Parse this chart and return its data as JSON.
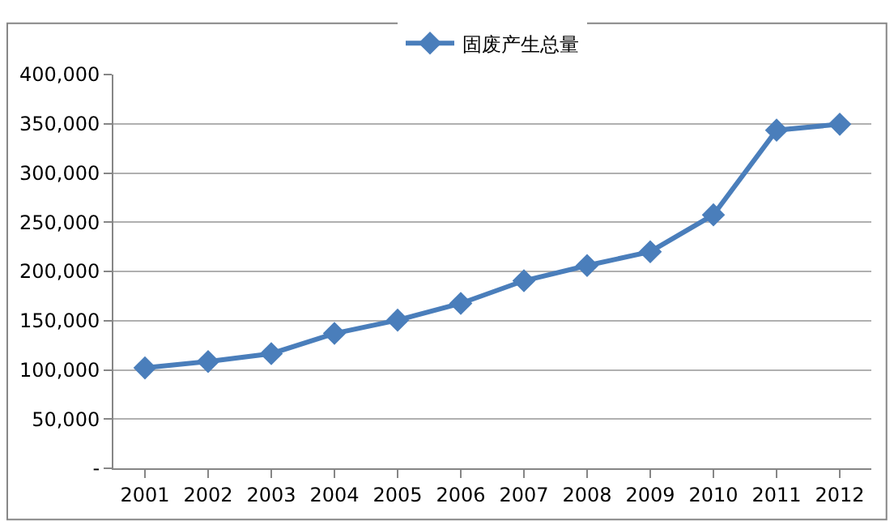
{
  "chart_data": {
    "type": "line",
    "categories": [
      "2001",
      "2002",
      "2003",
      "2004",
      "2005",
      "2006",
      "2007",
      "2008",
      "2009",
      "2010",
      "2011",
      "2012"
    ],
    "series": [
      {
        "name": "固废产生总量",
        "color": "#4a7ebb",
        "values": [
          102000,
          108500,
          116500,
          137000,
          150500,
          167500,
          190500,
          206000,
          220000,
          257500,
          343500,
          349500
        ]
      }
    ],
    "ylim": [
      0,
      400000
    ],
    "yticks": [
      {
        "value": 0,
        "label": "-"
      },
      {
        "value": 50000,
        "label": "50,000"
      },
      {
        "value": 100000,
        "label": "100,000"
      },
      {
        "value": 150000,
        "label": "150,000"
      },
      {
        "value": 200000,
        "label": "200,000"
      },
      {
        "value": 250000,
        "label": "250,000"
      },
      {
        "value": 300000,
        "label": "300,000"
      },
      {
        "value": 350000,
        "label": "350,000"
      },
      {
        "value": 400000,
        "label": "400,000"
      }
    ],
    "grid": "y",
    "legend": "top",
    "marker": "diamond",
    "line_style": "solid"
  }
}
